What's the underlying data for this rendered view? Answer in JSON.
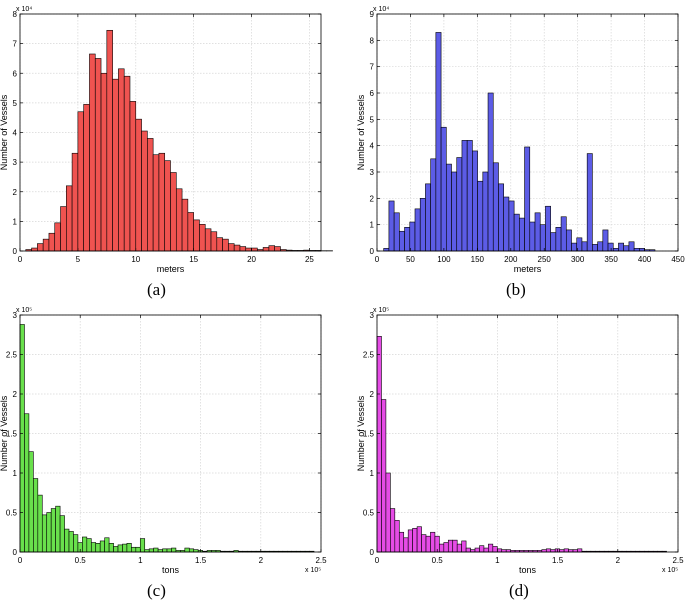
{
  "captions": [
    "(a)",
    "(b)",
    "(c)",
    "(d)"
  ],
  "chart_data": [
    {
      "type": "bar",
      "panel": "(a)",
      "color": "#ef5350",
      "xlabel": "meters",
      "ylabel": "Number of Vessels",
      "y_multiplier": "x 10⁴",
      "x_multiplier": "",
      "xlim": [
        0,
        26
      ],
      "ylim": [
        0,
        8
      ],
      "bin_start": 0.5,
      "bin_width": 0.5,
      "xticks": [
        0,
        5,
        10,
        15,
        20,
        25
      ],
      "xtick_labels": [
        "0",
        "5",
        "10",
        "15",
        "20",
        "25"
      ],
      "yticks": [
        0,
        1,
        2,
        3,
        4,
        5,
        6,
        7,
        8
      ],
      "ytick_labels": [
        "0",
        "1",
        "2",
        "3",
        "4",
        "5",
        "6",
        "7",
        "8"
      ],
      "grid": true,
      "values": [
        0.05,
        0.1,
        0.25,
        0.4,
        0.6,
        0.95,
        1.5,
        2.2,
        3.3,
        4.7,
        4.95,
        6.65,
        6.5,
        6.0,
        7.45,
        5.8,
        6.15,
        5.9,
        5.05,
        4.45,
        4.05,
        3.8,
        3.25,
        3.3,
        3.05,
        2.65,
        2.1,
        1.75,
        1.3,
        1.05,
        0.9,
        0.75,
        0.65,
        0.45,
        0.4,
        0.25,
        0.2,
        0.15,
        0.1,
        0.1,
        0.05,
        0.12,
        0.18,
        0.15,
        0.05,
        0.03,
        0.02,
        0.02,
        0.03,
        0.02,
        0.02,
        0.01,
        0.01
      ]
    },
    {
      "type": "bar",
      "panel": "(b)",
      "color": "#5c5ce6",
      "xlabel": "meters",
      "ylabel": "Number of Vessels",
      "y_multiplier": "x 10⁴",
      "x_multiplier": "",
      "xlim": [
        0,
        450
      ],
      "ylim": [
        0,
        9
      ],
      "bin_start": 10,
      "bin_width": 7.8,
      "xticks": [
        0,
        50,
        100,
        150,
        200,
        250,
        300,
        350,
        400,
        450
      ],
      "xtick_labels": [
        "0",
        "50",
        "100",
        "150",
        "200",
        "250",
        "300",
        "350",
        "400",
        "450"
      ],
      "yticks": [
        0,
        1,
        2,
        3,
        4,
        5,
        6,
        7,
        8,
        9
      ],
      "ytick_labels": [
        "0",
        "1",
        "2",
        "3",
        "4",
        "5",
        "6",
        "7",
        "8",
        "9"
      ],
      "grid": true,
      "values": [
        0.1,
        1.9,
        1.45,
        0.75,
        0.9,
        1.1,
        1.6,
        2.0,
        2.55,
        3.5,
        8.3,
        4.7,
        3.3,
        3.0,
        3.55,
        4.2,
        4.2,
        3.8,
        2.65,
        3.0,
        6.0,
        3.35,
        2.55,
        2.05,
        1.9,
        1.4,
        1.25,
        3.95,
        1.1,
        1.45,
        1.0,
        1.7,
        0.7,
        0.9,
        1.3,
        0.8,
        0.3,
        0.5,
        0.35,
        3.7,
        0.25,
        0.35,
        0.8,
        0.3,
        0.1,
        0.3,
        0.2,
        0.35,
        0.1,
        0.1,
        0.05,
        0.05
      ]
    },
    {
      "type": "bar",
      "panel": "(c)",
      "color": "#69e04c",
      "xlabel": "tons",
      "ylabel": "Number of Vessels",
      "y_multiplier": "x 10⁵",
      "x_multiplier": "x 10⁵",
      "xlim": [
        0,
        2.5
      ],
      "ylim": [
        0,
        3
      ],
      "bin_start": 0,
      "bin_width": 0.037,
      "xticks": [
        0,
        0.5,
        1,
        1.5,
        2,
        2.5
      ],
      "xtick_labels": [
        "0",
        "0.5",
        "1",
        "1.5",
        "2",
        "2.5"
      ],
      "yticks": [
        0,
        0.5,
        1,
        1.5,
        2,
        2.5,
        3
      ],
      "ytick_labels": [
        "0",
        "0.5",
        "1",
        "1.5",
        "2",
        "2.5",
        "3"
      ],
      "grid": true,
      "values": [
        2.88,
        1.75,
        1.27,
        0.93,
        0.72,
        0.47,
        0.5,
        0.55,
        0.58,
        0.46,
        0.29,
        0.26,
        0.22,
        0.12,
        0.19,
        0.17,
        0.12,
        0.11,
        0.14,
        0.18,
        0.11,
        0.07,
        0.09,
        0.1,
        0.11,
        0.06,
        0.06,
        0.17,
        0.03,
        0.04,
        0.05,
        0.03,
        0.04,
        0.04,
        0.05,
        0.02,
        0.02,
        0.05,
        0.04,
        0.03,
        0.02,
        0.01,
        0.02,
        0.02,
        0.02,
        0.01,
        0.01,
        0.01,
        0.02,
        0.01,
        0.01,
        0.01,
        0.01,
        0.01,
        0.01,
        0.01,
        0.01,
        0.01,
        0.01,
        0.01,
        0.01,
        0.01,
        0.01,
        0.01,
        0.01,
        0.01
      ]
    },
    {
      "type": "bar",
      "panel": "(d)",
      "color": "#e64ce6",
      "xlabel": "tons",
      "ylabel": "Number of Vessels",
      "y_multiplier": "x 10⁵",
      "x_multiplier": "x 10⁵",
      "xlim": [
        0,
        2.5
      ],
      "ylim": [
        0,
        3
      ],
      "bin_start": 0,
      "bin_width": 0.037,
      "xticks": [
        0,
        0.5,
        1,
        1.5,
        2,
        2.5
      ],
      "xtick_labels": [
        "0",
        "0.5",
        "1",
        "1.5",
        "2",
        "2.5"
      ],
      "yticks": [
        0,
        0.5,
        1,
        1.5,
        2,
        2.5,
        3
      ],
      "ytick_labels": [
        "0",
        "0.5",
        "1",
        "1.5",
        "2",
        "2.5",
        "3"
      ],
      "grid": true,
      "values": [
        2.73,
        1.93,
        1.0,
        0.55,
        0.4,
        0.25,
        0.18,
        0.28,
        0.3,
        0.32,
        0.22,
        0.2,
        0.25,
        0.2,
        0.1,
        0.12,
        0.15,
        0.15,
        0.1,
        0.14,
        0.05,
        0.03,
        0.05,
        0.08,
        0.05,
        0.1,
        0.07,
        0.04,
        0.03,
        0.03,
        0.02,
        0.02,
        0.02,
        0.02,
        0.02,
        0.02,
        0.02,
        0.03,
        0.04,
        0.03,
        0.04,
        0.03,
        0.04,
        0.03,
        0.03,
        0.04,
        0.01,
        0.01,
        0.01,
        0.01,
        0.01,
        0.01,
        0.01,
        0.01,
        0.01,
        0.01,
        0.01,
        0.01,
        0.01,
        0.01,
        0.01,
        0.01,
        0.01,
        0.01,
        0.01
      ]
    }
  ]
}
